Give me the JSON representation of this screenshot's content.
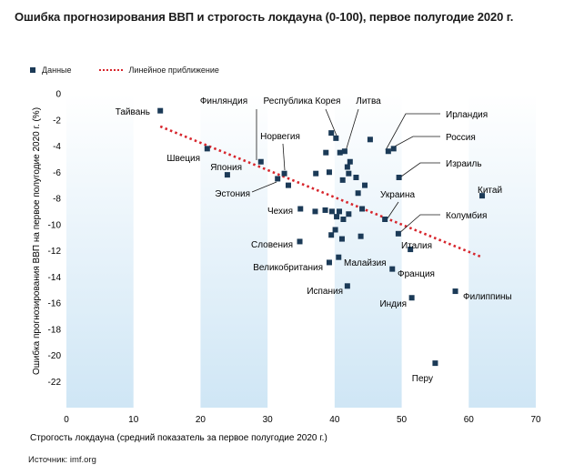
{
  "chart_data": {
    "type": "scatter",
    "title": "Ошибка прогнозирования ВВП и строгость локдауна (0-100), первое полугодие 2020 г.",
    "xlabel": "Строгость локдауна (средний показатель за первое полугодие 2020 г.)",
    "ylabel": "Ошибка прогнозирования ВВП на первое полугодие 2020 г. (%)",
    "xlim": [
      0,
      70
    ],
    "ylim": [
      -24,
      0
    ],
    "x_ticks": [
      0,
      10,
      20,
      30,
      40,
      50,
      60,
      70
    ],
    "y_ticks": [
      0,
      -2,
      -4,
      -6,
      -8,
      -10,
      -12,
      -14,
      -16,
      -18,
      -20,
      -22
    ],
    "shaded_x_bands": [
      [
        0,
        10
      ],
      [
        20,
        30
      ],
      [
        40,
        50
      ],
      [
        60,
        70
      ]
    ],
    "legend": {
      "position": "top-left",
      "data_label": "Данные",
      "trend_label": "Линейное приближение"
    },
    "colors": {
      "points": "#1b3a57",
      "trend": "#d7262d",
      "band": "#cfe6f5",
      "leader": "#1a1a1a"
    },
    "trend_line": {
      "x": [
        14,
        62
      ],
      "y": [
        -2.5,
        -12.5
      ]
    },
    "labeled_points": [
      {
        "name": "Тайвань",
        "x": 14,
        "y": -1.3
      },
      {
        "name": "Финляндия",
        "x": 29,
        "y": -5.2
      },
      {
        "name": "Швеция",
        "x": 21,
        "y": -4.2
      },
      {
        "name": "Япония",
        "x": 24,
        "y": -6.2
      },
      {
        "name": "Норвегия",
        "x": 32.5,
        "y": -6.1
      },
      {
        "name": "Эстония",
        "x": 31.5,
        "y": -6.5
      },
      {
        "name": "Республика Корея",
        "x": 40.2,
        "y": -3.4
      },
      {
        "name": "Литва",
        "x": 41.5,
        "y": -4.4
      },
      {
        "name": "Ирландия",
        "x": 48,
        "y": -4.4
      },
      {
        "name": "Россия",
        "x": 48.8,
        "y": -4.2
      },
      {
        "name": "Израиль",
        "x": 49.6,
        "y": -6.4
      },
      {
        "name": "Украина",
        "x": 47.5,
        "y": -9.6
      },
      {
        "name": "Китай",
        "x": 62,
        "y": -7.8
      },
      {
        "name": "Колумбия",
        "x": 49.5,
        "y": -10.7
      },
      {
        "name": "Чехия",
        "x": 34.9,
        "y": -8.8
      },
      {
        "name": "Италия",
        "x": 51.3,
        "y": -11.9
      },
      {
        "name": "Словения",
        "x": 34.8,
        "y": -11.3
      },
      {
        "name": "Малайзия",
        "x": 40.6,
        "y": -12.5
      },
      {
        "name": "Великобритания",
        "x": 39.2,
        "y": -12.9
      },
      {
        "name": "Франция",
        "x": 48.6,
        "y": -13.4
      },
      {
        "name": "Испания",
        "x": 41.9,
        "y": -14.7
      },
      {
        "name": "Индия",
        "x": 51.5,
        "y": -15.6
      },
      {
        "name": "Филиппины",
        "x": 58,
        "y": -15.1
      },
      {
        "name": "Перу",
        "x": 55,
        "y": -20.6
      }
    ],
    "unlabeled_points": [
      {
        "x": 39.5,
        "y": -3.0
      },
      {
        "x": 45.3,
        "y": -3.5
      },
      {
        "x": 38.7,
        "y": -4.5
      },
      {
        "x": 40.8,
        "y": -4.5
      },
      {
        "x": 42.3,
        "y": -5.2
      },
      {
        "x": 41.9,
        "y": -5.6
      },
      {
        "x": 37.2,
        "y": -6.1
      },
      {
        "x": 39.2,
        "y": -6.0
      },
      {
        "x": 42.1,
        "y": -6.1
      },
      {
        "x": 43.2,
        "y": -6.4
      },
      {
        "x": 41.2,
        "y": -6.6
      },
      {
        "x": 44.5,
        "y": -7.0
      },
      {
        "x": 33.1,
        "y": -7.0
      },
      {
        "x": 43.5,
        "y": -7.6
      },
      {
        "x": 37.1,
        "y": -9.0
      },
      {
        "x": 38.6,
        "y": -8.9
      },
      {
        "x": 39.6,
        "y": -9.0
      },
      {
        "x": 40.7,
        "y": -9.0
      },
      {
        "x": 42.1,
        "y": -9.2
      },
      {
        "x": 44.1,
        "y": -8.8
      },
      {
        "x": 40.3,
        "y": -9.4
      },
      {
        "x": 41.3,
        "y": -9.6
      },
      {
        "x": 40.1,
        "y": -10.4
      },
      {
        "x": 39.5,
        "y": -10.8
      },
      {
        "x": 41.1,
        "y": -11.1
      },
      {
        "x": 43.9,
        "y": -10.9
      }
    ]
  },
  "source": "Источник: imf.org"
}
